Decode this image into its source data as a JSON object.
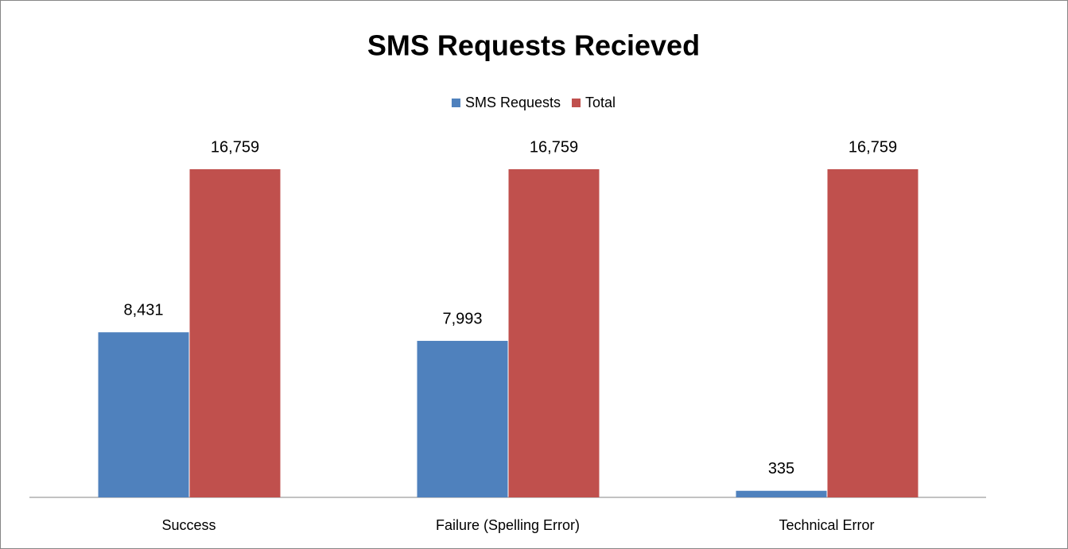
{
  "chart_data": {
    "type": "bar",
    "title": "SMS Requests Recieved",
    "categories": [
      "Success",
      "Failure (Spelling Error)",
      "Technical Error"
    ],
    "series": [
      {
        "name": "SMS Requests",
        "color": "#4f81bd",
        "values": [
          8431,
          7993,
          335
        ],
        "value_labels": [
          "8,431",
          "7,993",
          "335"
        ]
      },
      {
        "name": "Total",
        "color": "#c0504d",
        "values": [
          16759,
          16759,
          16759
        ],
        "value_labels": [
          "16,759",
          "16,759",
          "16,759"
        ]
      }
    ],
    "legend": "top"
  }
}
